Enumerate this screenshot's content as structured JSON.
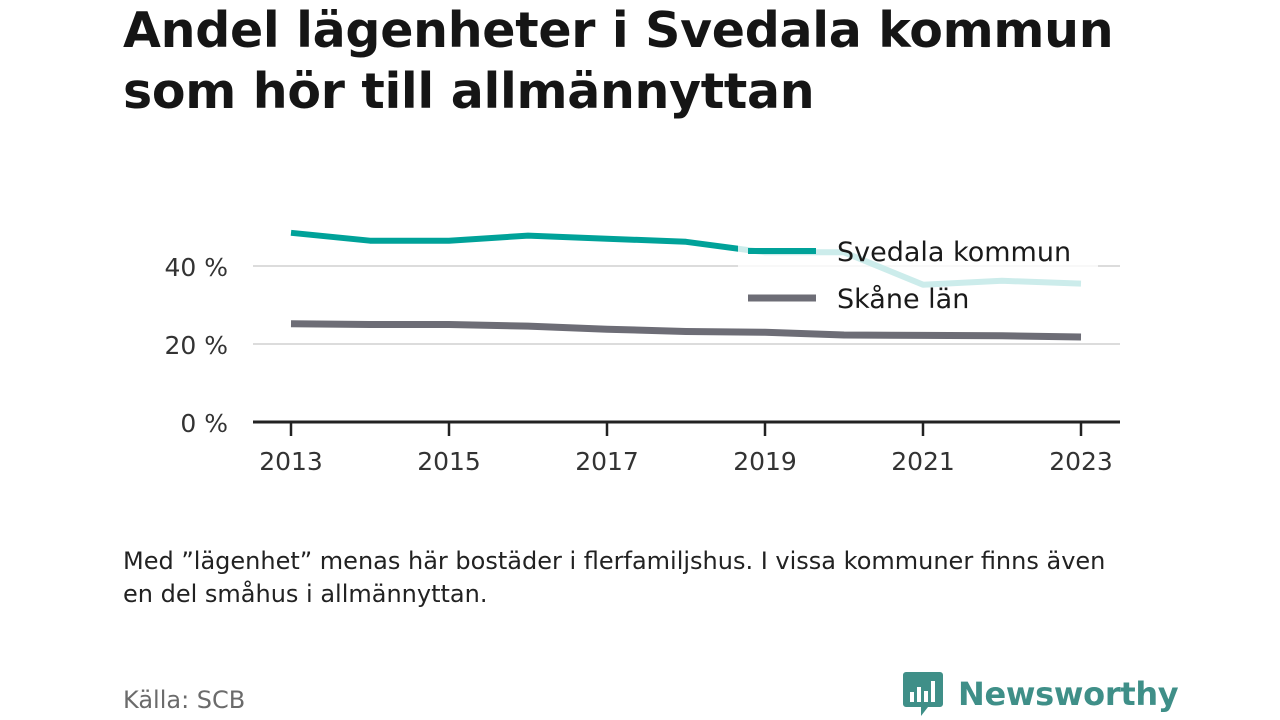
{
  "title": "Andel lägenheter i Svedala kommun som hör till allmännyttan",
  "note": "Med ”lägenhet” menas här bostäder i flerfamiljshus. I vissa kommuner finns även en del småhus i allmännyttan.",
  "source": "Källa: SCB",
  "brand": "Newsworthy",
  "colors": {
    "svedala": "#00a299",
    "skane": "#6d6d76",
    "brand": "#3f8f88",
    "grid": "#dcdcdc",
    "axis": "#222222"
  },
  "chart_data": {
    "type": "line",
    "title": "Andel lägenheter i Svedala kommun som hör till allmännyttan",
    "xlabel": "",
    "ylabel": "",
    "x": [
      2013,
      2014,
      2015,
      2016,
      2017,
      2018,
      2019,
      2020,
      2021,
      2022,
      2023
    ],
    "xticks": [
      "2013",
      "2015",
      "2017",
      "2019",
      "2021",
      "2023"
    ],
    "yticks": [
      "0 %",
      "20 %",
      "40 %"
    ],
    "ylim": [
      0,
      50
    ],
    "grid": true,
    "legend": "top-right",
    "series": [
      {
        "name": "Svedala kommun",
        "values": [
          48.5,
          46.5,
          46.5,
          47.8,
          47,
          46.2,
          43.5,
          43.5,
          35.2,
          36.2,
          35.5
        ]
      },
      {
        "name": "Skåne län",
        "values": [
          25.2,
          25,
          25,
          24.6,
          23.8,
          23.2,
          23,
          22.3,
          22.2,
          22.1,
          21.8
        ]
      }
    ]
  }
}
